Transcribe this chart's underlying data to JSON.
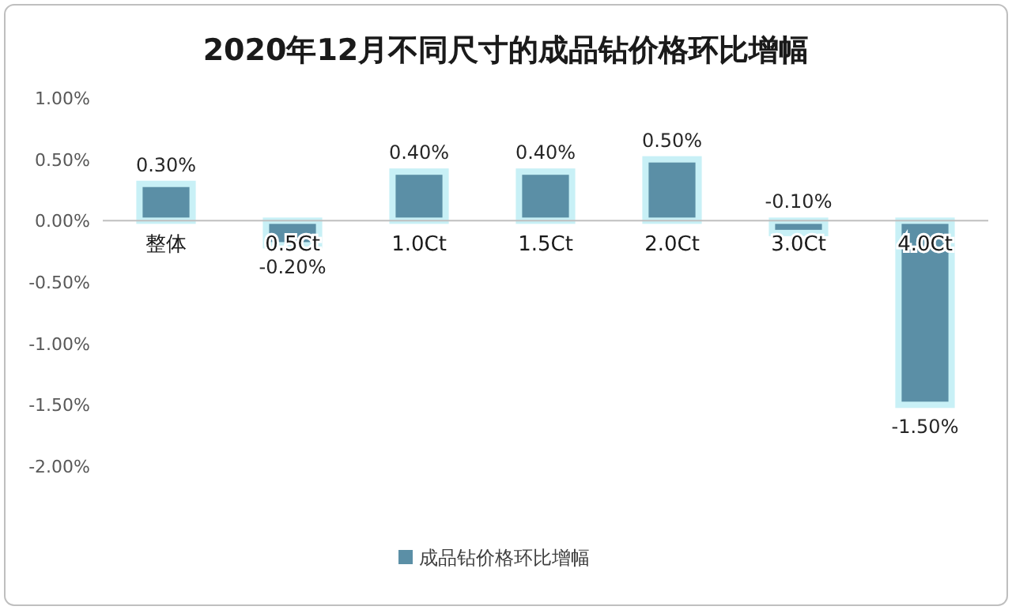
{
  "chart_data": {
    "type": "bar",
    "title": "2020年12月不同尺寸的成品钻价格环比增幅",
    "categories": [
      "整体",
      "0.5Ct",
      "1.0Ct",
      "1.5Ct",
      "2.0Ct",
      "3.0Ct",
      "4.0Ct"
    ],
    "series": [
      {
        "name": "成品钻价格环比增幅",
        "color": "#5b8fa6",
        "values": [
          0.3,
          -0.2,
          0.4,
          0.4,
          0.5,
          -0.1,
          -1.5
        ],
        "value_labels": [
          "0.30%",
          "-0.20%",
          "0.40%",
          "0.40%",
          "0.50%",
          "-0.10%",
          "-1.50%"
        ]
      }
    ],
    "ylim": [
      -2,
      1
    ],
    "yticks": [
      {
        "value": -2,
        "label": "-2.00%"
      },
      {
        "value": -1.5,
        "label": "-1.50%"
      },
      {
        "value": -1,
        "label": "-1.00%"
      },
      {
        "value": -0.5,
        "label": "-0.50%"
      },
      {
        "value": 0,
        "label": "0.00%"
      },
      {
        "value": 0.5,
        "label": "0.50%"
      },
      {
        "value": 1,
        "label": "1.00%"
      }
    ],
    "grid": false,
    "legend": "bottom"
  }
}
